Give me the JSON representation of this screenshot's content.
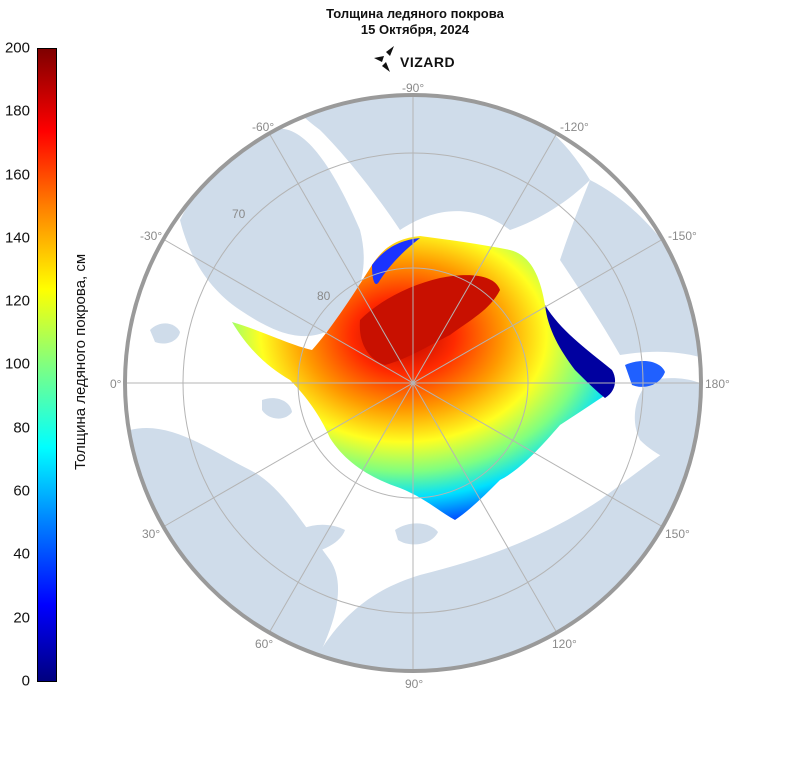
{
  "title": "Толщина ледяного покрова",
  "subtitle": "15 Октября, 2024",
  "logo_text": "VIZARD",
  "colorbar": {
    "label": "Толщина ледяного покрова, см",
    "ticks": [
      "200",
      "180",
      "160",
      "140",
      "120",
      "100",
      "80",
      "60",
      "40",
      "20",
      "0"
    ],
    "min": 0,
    "max": 200,
    "colormap": "jet"
  },
  "map": {
    "projection": "north-polar-stereographic",
    "longitude_labels": [
      "-90°",
      "-60°",
      "-30°",
      "0°",
      "30°",
      "60°",
      "90°",
      "120°",
      "150°",
      "180°",
      "-150°",
      "-120°"
    ],
    "latitude_labels": [
      "70",
      "80"
    ],
    "colors": {
      "ocean": "#ffffff",
      "land": "#cfdcea",
      "rim": "#9a9a9a",
      "grid": "#b4b4b4"
    }
  }
}
